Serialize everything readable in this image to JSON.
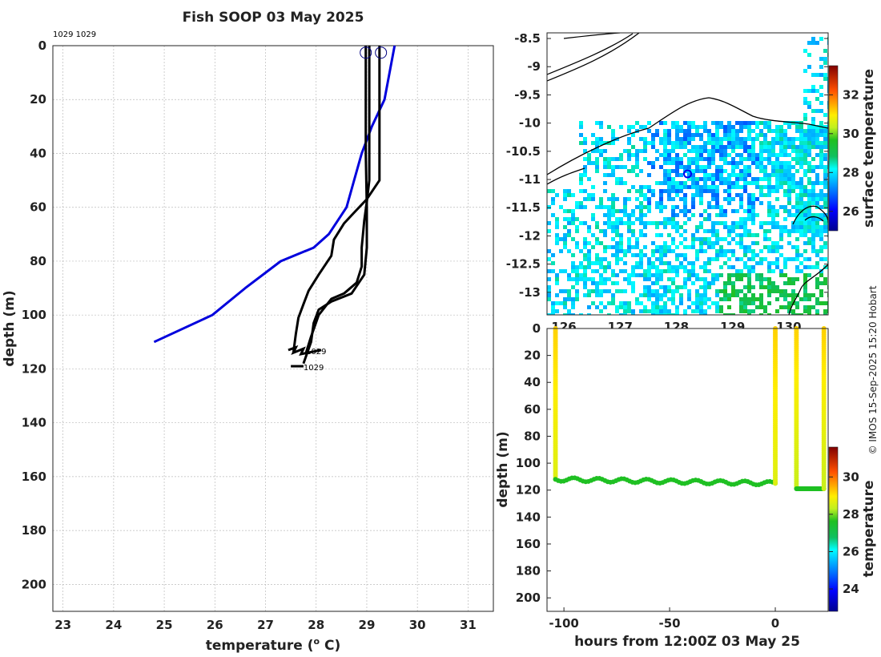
{
  "title": "Fish SOOP 03 May 2025",
  "drop_tags": "1029 1029",
  "copyright": "© IMOS 15-Sep-2025 15:20 Hobart",
  "chart_data": [
    {
      "type": "line",
      "xlabel": "temperature (",
      "xlabel_sup": "o",
      "xlabel_end": " C)",
      "ylabel": "depth (m)",
      "xlim": [
        22.8,
        31.5
      ],
      "ylim": [
        0,
        210
      ],
      "xticks": [
        23,
        24,
        25,
        26,
        27,
        28,
        29,
        30,
        31
      ],
      "yticks": [
        0,
        20,
        40,
        60,
        80,
        100,
        120,
        140,
        160,
        180,
        200
      ],
      "grid": true,
      "series": [
        {
          "color": "#0000dd",
          "points": [
            [
              29.55,
              0
            ],
            [
              29.45,
              10
            ],
            [
              29.35,
              20
            ],
            [
              29.1,
              30
            ],
            [
              28.9,
              40
            ],
            [
              28.75,
              50
            ],
            [
              28.6,
              60
            ],
            [
              28.25,
              70
            ],
            [
              27.95,
              75
            ],
            [
              27.3,
              80
            ],
            [
              26.6,
              90
            ],
            [
              25.95,
              100
            ],
            [
              24.8,
              110
            ]
          ]
        },
        {
          "color": "#000000",
          "points": [
            [
              29.05,
              0
            ],
            [
              29.05,
              10
            ],
            [
              29.05,
              30
            ],
            [
              29.05,
              50
            ],
            [
              29.0,
              58
            ],
            [
              28.95,
              65
            ],
            [
              28.9,
              75
            ],
            [
              28.9,
              82
            ],
            [
              28.8,
              88
            ],
            [
              28.55,
              92
            ],
            [
              28.3,
              94
            ],
            [
              28.05,
              100
            ],
            [
              27.9,
              108
            ],
            [
              27.8,
              114
            ]
          ]
        },
        {
          "color": "#000000",
          "points": [
            [
              29.25,
              0
            ],
            [
              29.25,
              10
            ],
            [
              29.25,
              30
            ],
            [
              29.25,
              50
            ],
            [
              29.0,
              57
            ],
            [
              28.75,
              62
            ],
            [
              28.55,
              66
            ],
            [
              28.35,
              72
            ],
            [
              28.3,
              78
            ],
            [
              28.05,
              85
            ],
            [
              27.85,
              91
            ],
            [
              27.75,
              96
            ],
            [
              27.65,
              101
            ],
            [
              27.6,
              107
            ],
            [
              27.55,
              114
            ]
          ]
        },
        {
          "color": "#000000",
          "points": [
            [
              28.98,
              0
            ],
            [
              28.98,
              20
            ],
            [
              28.98,
              40
            ],
            [
              29.0,
              60
            ],
            [
              29.0,
              75
            ],
            [
              28.95,
              85
            ],
            [
              28.7,
              92
            ],
            [
              28.3,
              95
            ],
            [
              28.05,
              98
            ],
            [
              27.95,
              103
            ],
            [
              27.9,
              110
            ],
            [
              27.75,
              118
            ]
          ]
        }
      ],
      "drop_markers": [
        {
          "x": 28.98,
          "y": 2
        },
        {
          "x": 29.28,
          "y": 2
        }
      ],
      "end_labels": [
        {
          "text": "1029",
          "x": 27.8,
          "y": 113
        },
        {
          "text": "1029",
          "x": 27.75,
          "y": 119
        }
      ]
    },
    {
      "type": "heatmap",
      "colorbar_label": "surface temperature",
      "xlim": [
        125.7,
        130.7
      ],
      "ylim": [
        -13.4,
        -8.4
      ],
      "xticks": [
        126,
        127,
        128,
        129,
        130
      ],
      "yticks": [
        -8.5,
        -9,
        -9.5,
        -10,
        -10.5,
        -11,
        -11.5,
        -12,
        -12.5,
        -13
      ],
      "clim": [
        25,
        33.5
      ],
      "cticks": [
        26,
        28,
        30,
        32
      ],
      "ship_position": {
        "lon": 128.2,
        "lat": -10.9
      }
    },
    {
      "type": "scatter",
      "xlabel": "hours from 12:00Z 03 May 25",
      "ylabel": "depth (m)",
      "colorbar_label": "temperature",
      "xlim": [
        -108,
        25
      ],
      "ylim": [
        0,
        210
      ],
      "xticks": [
        -100,
        -50,
        0
      ],
      "yticks": [
        0,
        20,
        40,
        60,
        80,
        100,
        120,
        140,
        160,
        180,
        200
      ],
      "clim": [
        22.8,
        31.6
      ],
      "cticks": [
        24,
        26,
        28,
        30
      ],
      "segments": [
        {
          "x0": -104,
          "x1": -104,
          "d0": 0,
          "d1": 112,
          "t0": 29.2,
          "t1": 28.6
        },
        {
          "x0": -104,
          "x1": 0,
          "d0": 112,
          "d1": 115,
          "t0": 27.6,
          "t1": 27.6,
          "wavy": true
        },
        {
          "x0": 0,
          "x1": 0,
          "d0": 115,
          "d1": 0,
          "t0": 28.6,
          "t1": 29.2
        },
        {
          "x0": 10,
          "x1": 10,
          "d0": 0,
          "d1": 118,
          "t0": 29.2,
          "t1": 28.4
        },
        {
          "x0": 10,
          "x1": 23,
          "d0": 119,
          "d1": 119,
          "t0": 27.6,
          "t1": 27.6
        },
        {
          "x0": 23,
          "x1": 23,
          "d0": 119,
          "d1": 0,
          "t0": 28.4,
          "t1": 29.2
        }
      ]
    }
  ]
}
